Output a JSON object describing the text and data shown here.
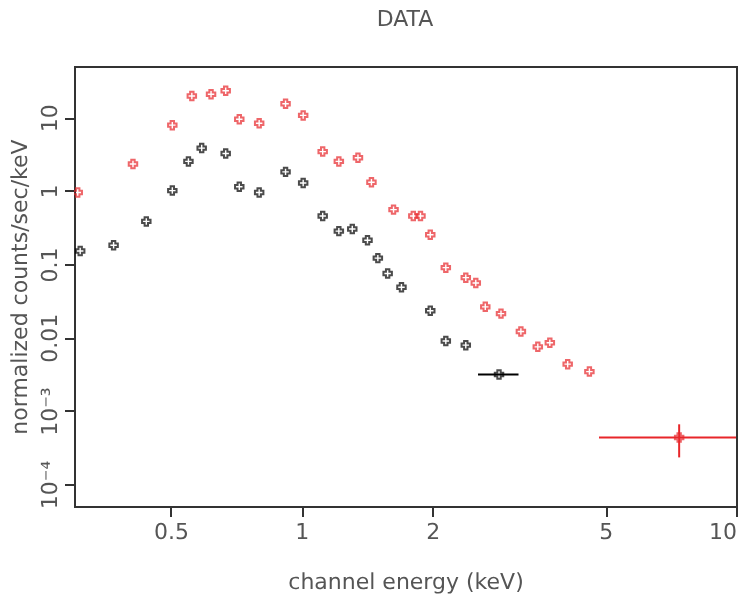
{
  "chart_data": {
    "type": "scatter",
    "title": "DATA",
    "xlabel": "channel energy (keV)",
    "ylabel": "normalized counts/sec/keV",
    "log": "xy",
    "grid": false,
    "marker": "cross",
    "xlim": [
      0.3,
      10
    ],
    "xticks": [
      0.5,
      1,
      2,
      5,
      10
    ],
    "ylim": [
      5e-05,
      50
    ],
    "yticks": [
      {
        "value": 0.0001,
        "label": "10⁻⁴"
      },
      {
        "value": 0.001,
        "label": "10⁻³"
      },
      0.01,
      0.1,
      1,
      10
    ],
    "series": [
      {
        "color": "#e8262a",
        "x": [
          0.306,
          0.41,
          0.505,
          0.56,
          0.62,
          0.67,
          0.72,
          0.8,
          0.92,
          1.01,
          1.12,
          1.22,
          1.35,
          1.45,
          1.63,
          1.81,
          1.88,
          1.98,
          2.15,
          2.39,
          2.52,
          2.65,
          2.88,
          3.2,
          3.5,
          3.73,
          4.1,
          4.6,
          7.4
        ],
        "values": [
          0.94,
          2.3,
          7.8,
          19.5,
          20.6,
          23,
          9.4,
          8.3,
          15.3,
          10.6,
          3.4,
          2.5,
          2.8,
          1.3,
          0.55,
          0.45,
          0.45,
          0.25,
          0.089,
          0.065,
          0.055,
          0.026,
          0.021,
          0.012,
          0.0074,
          0.0084,
          0.0043,
          0.0034,
          0.00043
        ],
        "xerrors": [
          null,
          null,
          null,
          null,
          null,
          null,
          null,
          null,
          null,
          null,
          null,
          null,
          null,
          null,
          null,
          null,
          null,
          null,
          null,
          null,
          null,
          null,
          null,
          null,
          null,
          null,
          null,
          null,
          [
            4.84,
            10
          ]
        ],
        "errors": [
          null,
          null,
          null,
          null,
          null,
          null,
          null,
          null,
          null,
          null,
          null,
          null,
          null,
          null,
          null,
          null,
          null,
          null,
          null,
          null,
          null,
          null,
          null,
          null,
          null,
          null,
          null,
          null,
          [
            0.00023,
            0.00065
          ]
        ]
      },
      {
        "color": "#000000",
        "x": [
          0.31,
          0.37,
          0.44,
          0.505,
          0.55,
          0.59,
          0.67,
          0.72,
          0.8,
          0.92,
          1.01,
          1.12,
          1.22,
          1.31,
          1.42,
          1.5,
          1.58,
          1.7,
          1.98,
          2.15,
          2.39,
          2.85
        ],
        "values": [
          0.15,
          0.18,
          0.38,
          1.0,
          2.5,
          3.8,
          3.2,
          1.13,
          0.94,
          1.8,
          1.27,
          0.45,
          0.28,
          0.3,
          0.21,
          0.12,
          0.074,
          0.048,
          0.023,
          0.0089,
          0.0078,
          0.0031
        ],
        "xerrors": [
          null,
          null,
          null,
          null,
          null,
          null,
          null,
          null,
          null,
          null,
          null,
          null,
          null,
          null,
          null,
          null,
          null,
          null,
          null,
          null,
          null,
          [
            2.55,
            3.16
          ]
        ]
      }
    ]
  }
}
